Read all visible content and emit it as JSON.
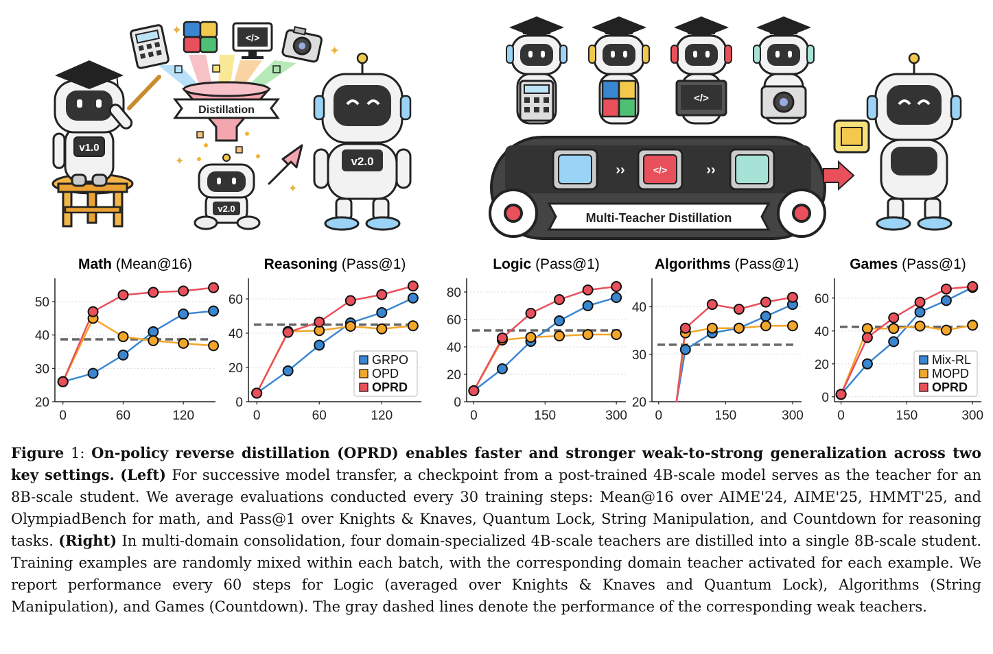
{
  "illustrations": {
    "left": {
      "funnel_label": "Distillation",
      "teacher_badge": "v1.0",
      "child_badge": "v2.0",
      "student_badge": "v2.0"
    },
    "right": {
      "belt_label": "Multi-Teacher Distillation"
    },
    "icon_names": [
      "calculator-icon",
      "puzzle-icon",
      "code-icon",
      "camera-icon",
      "graduation-cap-icon",
      "funnel-icon",
      "conveyor-belt-icon",
      "arrow-right-icon"
    ]
  },
  "colors": {
    "GRPO": "#3a86d1",
    "OPD": "#f2a62a",
    "OPRD": "#e8505b",
    "Mix-RL": "#3a86d1",
    "MOPD": "#f2a62a",
    "weak_teacher": "#666666"
  },
  "chart_data": [
    {
      "type": "line",
      "title_bold": "Math",
      "title_rest": " (Mean@16)",
      "xticks": [
        0,
        60,
        120
      ],
      "xlim": [
        -8,
        152
      ],
      "yticks": [
        20,
        30,
        40,
        50
      ],
      "ylim": [
        20,
        57
      ],
      "baseline": 38.7,
      "series": [
        {
          "name": "GRPO",
          "x": [
            0,
            30,
            60,
            90,
            120,
            150
          ],
          "values": [
            26,
            28.5,
            34,
            41,
            46.3,
            47.2
          ]
        },
        {
          "name": "OPD",
          "x": [
            0,
            30,
            60,
            90,
            120,
            150
          ],
          "values": [
            26,
            45,
            39.5,
            38.3,
            37.5,
            36.8
          ]
        },
        {
          "name": "OPRD",
          "x": [
            0,
            30,
            60,
            90,
            120,
            150
          ],
          "values": [
            26,
            47,
            52,
            52.8,
            53.2,
            54.2
          ]
        }
      ]
    },
    {
      "type": "line",
      "title_bold": "Reasoning",
      "title_rest": " (Pass@1)",
      "xticks": [
        0,
        60,
        120
      ],
      "xlim": [
        -8,
        158
      ],
      "yticks": [
        0,
        20,
        40,
        60
      ],
      "ylim": [
        0,
        72
      ],
      "baseline": 45,
      "legend": [
        "GRPO",
        "OPD",
        "OPRD"
      ],
      "series": [
        {
          "name": "GRPO",
          "x": [
            0,
            30,
            60,
            90,
            120,
            150
          ],
          "values": [
            5,
            18,
            33,
            46,
            52,
            60.5
          ]
        },
        {
          "name": "OPD",
          "x": [
            0,
            30,
            60,
            90,
            120,
            150
          ],
          "values": [
            5,
            41,
            41.5,
            44,
            42.5,
            44.3
          ]
        },
        {
          "name": "OPRD",
          "x": [
            0,
            30,
            60,
            90,
            120,
            150
          ],
          "values": [
            5,
            40.5,
            46.5,
            59,
            62.5,
            67.5
          ]
        }
      ]
    },
    {
      "type": "line",
      "title_bold": "Logic",
      "title_rest": " (Pass@1)",
      "xticks": [
        0,
        150,
        300
      ],
      "xlim": [
        -15,
        320
      ],
      "yticks": [
        0,
        20,
        40,
        60,
        80
      ],
      "ylim": [
        0,
        90
      ],
      "baseline": 52,
      "series": [
        {
          "name": "Mix-RL",
          "x": [
            0,
            60,
            120,
            180,
            240,
            300
          ],
          "values": [
            8,
            24,
            44,
            59,
            70,
            76
          ]
        },
        {
          "name": "MOPD",
          "x": [
            0,
            60,
            120,
            180,
            240,
            300
          ],
          "values": [
            8,
            45,
            47,
            48,
            49,
            49
          ]
        },
        {
          "name": "OPRD",
          "x": [
            0,
            60,
            120,
            180,
            240,
            300
          ],
          "values": [
            8,
            46.5,
            64.5,
            74.5,
            81.5,
            84
          ]
        }
      ]
    },
    {
      "type": "line",
      "title_bold": "Algorithms",
      "title_rest": " (Pass@1)",
      "xticks": [
        0,
        150,
        300
      ],
      "xlim": [
        -15,
        320
      ],
      "yticks": [
        20,
        30,
        40
      ],
      "ylim": [
        20,
        46
      ],
      "baseline": 32,
      "series": [
        {
          "name": "Mix-RL",
          "x": [
            40,
            60,
            120,
            180,
            240,
            300
          ],
          "values": [
            20,
            31,
            34.5,
            35.5,
            38,
            40.5
          ]
        },
        {
          "name": "MOPD",
          "x": [
            40,
            60,
            120,
            180,
            240,
            300
          ],
          "values": [
            20,
            34.5,
            35.5,
            35.5,
            36,
            36
          ]
        },
        {
          "name": "OPRD",
          "x": [
            40,
            60,
            120,
            180,
            240,
            300
          ],
          "values": [
            20,
            35.5,
            40.5,
            39.5,
            41,
            42
          ]
        }
      ]
    },
    {
      "type": "line",
      "title_bold": "Games",
      "title_rest": " (Pass@1)",
      "xticks": [
        0,
        150,
        300
      ],
      "xlim": [
        -15,
        320
      ],
      "yticks": [
        0,
        20,
        40,
        60
      ],
      "ylim": [
        -3,
        72
      ],
      "baseline": 42.5,
      "legend": [
        "Mix-RL",
        "MOPD",
        "OPRD"
      ],
      "series": [
        {
          "name": "Mix-RL",
          "x": [
            0,
            60,
            120,
            180,
            240,
            300
          ],
          "values": [
            1.5,
            20,
            33.5,
            51.5,
            58.5,
            66.5
          ]
        },
        {
          "name": "MOPD",
          "x": [
            0,
            60,
            120,
            180,
            240,
            300
          ],
          "values": [
            1.5,
            41.5,
            41.5,
            43,
            40.5,
            43.5
          ]
        },
        {
          "name": "OPRD",
          "x": [
            0,
            60,
            120,
            180,
            240,
            300
          ],
          "values": [
            1.5,
            36,
            48,
            57.5,
            65.5,
            67
          ]
        }
      ]
    }
  ],
  "caption": {
    "figure_label": "Figure",
    "figure_number": "1:",
    "bold_lead": "On-policy reverse distillation (OPRD) enables faster and stronger weak-to-strong generalization across two key settings.",
    "left_tag": "(Left)",
    "left_text": "For successive model transfer, a checkpoint from a post-trained 4B-scale model serves as the teacher for an 8B-scale student. We average evaluations conducted every 30 training steps: Mean@16 over AIME'24, AIME'25, HMMT'25, and OlympiadBench for math, and Pass@1 over Knights & Knaves, Quantum Lock, String Manipulation, and Countdown for reasoning tasks.",
    "right_tag": "(Right)",
    "right_text": "In multi-domain consolidation, four domain-specialized 4B-scale teachers are distilled into a single 8B-scale student. Training examples are randomly mixed within each batch, with the corresponding domain teacher activated for each example. We report performance every 60 steps for Logic (averaged over Knights & Knaves and Quantum Lock), Algorithms (String Manipulation), and Games (Countdown). The gray dashed lines denote the performance of the corresponding weak teachers."
  }
}
